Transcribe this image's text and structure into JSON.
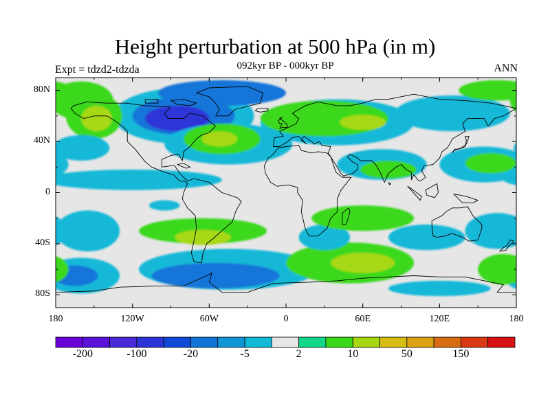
{
  "title": "Height perturbation at 500 hPa (in m)",
  "subtitle": "092kyr BP - 000kyr BP",
  "experiment_label": "Expt = tdzd2-tdzda",
  "season_label": "ANN",
  "colors": {
    "background": "#e6e6e6",
    "coast": "#000000"
  },
  "map": {
    "projection": "cylindrical-equidistant",
    "lon_range": [
      -180,
      180
    ],
    "lat_range": [
      -90,
      90
    ],
    "lat_ticks": [
      {
        "value": 80,
        "label": "80N"
      },
      {
        "value": 40,
        "label": "40N"
      },
      {
        "value": 0,
        "label": "0"
      },
      {
        "value": -40,
        "label": "40S"
      },
      {
        "value": -80,
        "label": "80S"
      }
    ],
    "lon_ticks": [
      {
        "value": -180,
        "label": "180"
      },
      {
        "value": -120,
        "label": "120W"
      },
      {
        "value": -60,
        "label": "60W"
      },
      {
        "value": 0,
        "label": "0"
      },
      {
        "value": 60,
        "label": "60E"
      },
      {
        "value": 120,
        "label": "120E"
      },
      {
        "value": 180,
        "label": "180"
      }
    ]
  },
  "colorbar": {
    "colors": [
      "#6a00d8",
      "#5a12d8",
      "#4b2ad8",
      "#2e35d8",
      "#124ad8",
      "#1274d8",
      "#1296d6",
      "#12b8d8",
      "#e6e6e6",
      "#12d88a",
      "#3ad81a",
      "#a6d812",
      "#d8be12",
      "#d8a212",
      "#d86c12",
      "#d83a12",
      "#d81212"
    ],
    "labels": [
      {
        "boundary": 1,
        "text": "-200"
      },
      {
        "boundary": 3,
        "text": "-100"
      },
      {
        "boundary": 5,
        "text": "-20"
      },
      {
        "boundary": 7,
        "text": "-5"
      },
      {
        "boundary": 9,
        "text": "2"
      },
      {
        "boundary": 11,
        "text": "10"
      },
      {
        "boundary": 13,
        "text": "50"
      },
      {
        "boundary": 15,
        "text": "150"
      }
    ]
  },
  "field_blobs": [
    {
      "lon": -80,
      "lat": 60,
      "rlon": 55,
      "rlat": 22,
      "cls": -5
    },
    {
      "lon": -80,
      "lat": 60,
      "rlon": 40,
      "rlat": 15,
      "cls": -20
    },
    {
      "lon": -85,
      "lat": 58,
      "rlon": 25,
      "rlat": 10,
      "cls": -100
    },
    {
      "lon": -50,
      "lat": 78,
      "rlon": 50,
      "rlat": 10,
      "cls": -20
    },
    {
      "lon": -160,
      "lat": 72,
      "rlon": 25,
      "rlat": 15,
      "cls": 10
    },
    {
      "lon": -150,
      "lat": 60,
      "rlon": 22,
      "rlat": 18,
      "cls": 10
    },
    {
      "lon": -148,
      "lat": 58,
      "rlon": 12,
      "rlat": 10,
      "cls": 50
    },
    {
      "lon": -160,
      "lat": 35,
      "rlon": 22,
      "rlat": 10,
      "cls": -5
    },
    {
      "lon": -45,
      "lat": 38,
      "rlon": 50,
      "rlat": 16,
      "cls": -5
    },
    {
      "lon": -50,
      "lat": 42,
      "rlon": 30,
      "rlat": 12,
      "cls": 10
    },
    {
      "lon": -52,
      "lat": 42,
      "rlon": 14,
      "rlat": 6,
      "cls": 50
    },
    {
      "lon": 40,
      "lat": 55,
      "rlon": 60,
      "rlat": 18,
      "cls": -5
    },
    {
      "lon": 30,
      "lat": 58,
      "rlon": 50,
      "rlat": 14,
      "cls": 10
    },
    {
      "lon": 60,
      "lat": 55,
      "rlon": 18,
      "rlat": 6,
      "cls": 50
    },
    {
      "lon": 130,
      "lat": 62,
      "rlon": 45,
      "rlat": 14,
      "cls": -5
    },
    {
      "lon": 165,
      "lat": 80,
      "rlon": 30,
      "rlat": 8,
      "cls": 10
    },
    {
      "lon": 155,
      "lat": 22,
      "rlon": 35,
      "rlat": 14,
      "cls": -5
    },
    {
      "lon": 160,
      "lat": 23,
      "rlon": 20,
      "rlat": 8,
      "cls": 10
    },
    {
      "lon": 75,
      "lat": 22,
      "rlon": 35,
      "rlat": 12,
      "cls": -5
    },
    {
      "lon": 80,
      "lat": 18,
      "rlon": 22,
      "rlat": 7,
      "cls": 10
    },
    {
      "lon": -120,
      "lat": 10,
      "rlon": 70,
      "rlat": 8,
      "cls": -5
    },
    {
      "lon": -95,
      "lat": -10,
      "rlon": 12,
      "rlat": 4,
      "cls": -5
    },
    {
      "lon": -155,
      "lat": -30,
      "rlon": 25,
      "rlat": 16,
      "cls": -5
    },
    {
      "lon": -160,
      "lat": -65,
      "rlon": 30,
      "rlat": 14,
      "cls": -5
    },
    {
      "lon": -165,
      "lat": -65,
      "rlon": 18,
      "rlat": 8,
      "cls": -20
    },
    {
      "lon": -65,
      "lat": -30,
      "rlon": 50,
      "rlat": 10,
      "cls": 10
    },
    {
      "lon": -65,
      "lat": -35,
      "rlon": 22,
      "rlat": 6,
      "cls": 50
    },
    {
      "lon": -45,
      "lat": -60,
      "rlon": 70,
      "rlat": 16,
      "cls": -5
    },
    {
      "lon": -55,
      "lat": -65,
      "rlon": 50,
      "rlat": 10,
      "cls": -20
    },
    {
      "lon": 50,
      "lat": -55,
      "rlon": 50,
      "rlat": 16,
      "cls": 10
    },
    {
      "lon": 60,
      "lat": -55,
      "rlon": 25,
      "rlat": 8,
      "cls": 50
    },
    {
      "lon": 30,
      "lat": -35,
      "rlon": 20,
      "rlat": 10,
      "cls": -5
    },
    {
      "lon": 60,
      "lat": -20,
      "rlon": 40,
      "rlat": 10,
      "cls": 10
    },
    {
      "lon": 110,
      "lat": -35,
      "rlon": 30,
      "rlat": 10,
      "cls": -5
    },
    {
      "lon": 165,
      "lat": -30,
      "rlon": 25,
      "rlat": 14,
      "cls": -5
    },
    {
      "lon": 170,
      "lat": -60,
      "rlon": 20,
      "rlat": 12,
      "cls": 10
    },
    {
      "lon": 120,
      "lat": -75,
      "rlon": 40,
      "rlat": 6,
      "cls": -5
    }
  ],
  "coastlines": [
    [
      [
        -168,
        66
      ],
      [
        -165,
        62
      ],
      [
        -158,
        58
      ],
      [
        -150,
        60
      ],
      [
        -140,
        60
      ],
      [
        -135,
        57
      ],
      [
        -128,
        52
      ],
      [
        -124,
        48
      ],
      [
        -124,
        40
      ],
      [
        -118,
        34
      ],
      [
        -110,
        24
      ],
      [
        -105,
        20
      ],
      [
        -95,
        16
      ],
      [
        -88,
        14
      ],
      [
        -83,
        9
      ],
      [
        -79,
        9
      ],
      [
        -77,
        7
      ],
      [
        -80,
        0
      ],
      [
        -81,
        -5
      ],
      [
        -77,
        -12
      ],
      [
        -71,
        -18
      ],
      [
        -70,
        -28
      ],
      [
        -72,
        -38
      ],
      [
        -74,
        -47
      ],
      [
        -72,
        -54
      ],
      [
        -66,
        -55
      ],
      [
        -65,
        -48
      ],
      [
        -62,
        -40
      ],
      [
        -57,
        -36
      ],
      [
        -48,
        -28
      ],
      [
        -42,
        -23
      ],
      [
        -39,
        -14
      ],
      [
        -35,
        -7
      ],
      [
        -38,
        -4
      ],
      [
        -50,
        0
      ],
      [
        -60,
        8
      ],
      [
        -72,
        11
      ],
      [
        -77,
        9
      ],
      [
        -83,
        15
      ],
      [
        -87,
        21
      ],
      [
        -90,
        21
      ],
      [
        -97,
        20
      ],
      [
        -97,
        26
      ],
      [
        -90,
        29
      ],
      [
        -84,
        30
      ],
      [
        -81,
        25
      ],
      [
        -80,
        32
      ],
      [
        -75,
        36
      ],
      [
        -70,
        42
      ],
      [
        -66,
        45
      ],
      [
        -60,
        47
      ],
      [
        -55,
        52
      ],
      [
        -60,
        56
      ],
      [
        -65,
        60
      ],
      [
        -75,
        62
      ],
      [
        -80,
        58
      ],
      [
        -92,
        58
      ],
      [
        -95,
        62
      ],
      [
        -90,
        67
      ],
      [
        -110,
        68
      ],
      [
        -125,
        70
      ],
      [
        -140,
        70
      ],
      [
        -156,
        71
      ],
      [
        -166,
        68
      ],
      [
        -168,
        66
      ]
    ],
    [
      [
        -55,
        60
      ],
      [
        -45,
        60
      ],
      [
        -40,
        65
      ],
      [
        -20,
        70
      ],
      [
        -18,
        78
      ],
      [
        -30,
        83
      ],
      [
        -60,
        82
      ],
      [
        -70,
        78
      ],
      [
        -60,
        75
      ],
      [
        -55,
        70
      ],
      [
        -52,
        65
      ],
      [
        -55,
        60
      ]
    ],
    [
      [
        -10,
        36
      ],
      [
        -9,
        43
      ],
      [
        -2,
        44
      ],
      [
        -5,
        48
      ],
      [
        2,
        51
      ],
      [
        8,
        54
      ],
      [
        10,
        58
      ],
      [
        5,
        62
      ],
      [
        15,
        68
      ],
      [
        25,
        71
      ],
      [
        40,
        68
      ],
      [
        50,
        68
      ],
      [
        60,
        70
      ],
      [
        70,
        73
      ],
      [
        80,
        73
      ],
      [
        100,
        77
      ],
      [
        120,
        73
      ],
      [
        140,
        72
      ],
      [
        160,
        70
      ],
      [
        175,
        67
      ],
      [
        180,
        66
      ],
      [
        170,
        60
      ],
      [
        163,
        58
      ],
      [
        158,
        52
      ],
      [
        155,
        58
      ],
      [
        142,
        58
      ],
      [
        138,
        54
      ],
      [
        140,
        48
      ],
      [
        130,
        42
      ],
      [
        128,
        38
      ],
      [
        126,
        35
      ],
      [
        122,
        32
      ],
      [
        120,
        27
      ],
      [
        115,
        22
      ],
      [
        108,
        21
      ],
      [
        106,
        17
      ],
      [
        109,
        12
      ],
      [
        105,
        9
      ],
      [
        103,
        10
      ],
      [
        100,
        14
      ],
      [
        98,
        10
      ],
      [
        98,
        16
      ],
      [
        94,
        18
      ],
      [
        90,
        22
      ],
      [
        86,
        20
      ],
      [
        80,
        15
      ],
      [
        77,
        8
      ],
      [
        73,
        17
      ],
      [
        70,
        22
      ],
      [
        67,
        25
      ],
      [
        58,
        25
      ],
      [
        56,
        27
      ],
      [
        50,
        30
      ],
      [
        48,
        28
      ],
      [
        52,
        24
      ],
      [
        56,
        22
      ],
      [
        56,
        18
      ],
      [
        52,
        15
      ],
      [
        45,
        13
      ],
      [
        43,
        15
      ],
      [
        40,
        20
      ],
      [
        35,
        28
      ],
      [
        33,
        31
      ],
      [
        35,
        36
      ],
      [
        28,
        37
      ],
      [
        26,
        40
      ],
      [
        22,
        38
      ],
      [
        20,
        40
      ],
      [
        14,
        44
      ],
      [
        12,
        41
      ],
      [
        16,
        38
      ],
      [
        10,
        44
      ],
      [
        5,
        43
      ],
      [
        0,
        39
      ],
      [
        -5,
        36
      ],
      [
        -10,
        36
      ]
    ],
    [
      [
        -17,
        21
      ],
      [
        -16,
        15
      ],
      [
        -12,
        8
      ],
      [
        -7,
        5
      ],
      [
        2,
        6
      ],
      [
        9,
        4
      ],
      [
        9,
        0
      ],
      [
        13,
        -6
      ],
      [
        12,
        -15
      ],
      [
        15,
        -28
      ],
      [
        18,
        -34
      ],
      [
        25,
        -34
      ],
      [
        32,
        -28
      ],
      [
        35,
        -20
      ],
      [
        40,
        -15
      ],
      [
        40,
        -5
      ],
      [
        43,
        2
      ],
      [
        51,
        12
      ],
      [
        44,
        12
      ],
      [
        39,
        16
      ],
      [
        35,
        28
      ],
      [
        32,
        31
      ],
      [
        25,
        32
      ],
      [
        20,
        31
      ],
      [
        12,
        33
      ],
      [
        10,
        37
      ],
      [
        0,
        36
      ],
      [
        -6,
        35
      ],
      [
        -10,
        30
      ],
      [
        -14,
        27
      ],
      [
        -17,
        21
      ]
    ],
    [
      [
        44,
        -25
      ],
      [
        47,
        -25
      ],
      [
        50,
        -15
      ],
      [
        49,
        -12
      ],
      [
        44,
        -16
      ],
      [
        44,
        -25
      ]
    ],
    [
      [
        114,
        -22
      ],
      [
        114,
        -26
      ],
      [
        115,
        -34
      ],
      [
        118,
        -35
      ],
      [
        124,
        -34
      ],
      [
        130,
        -32
      ],
      [
        138,
        -35
      ],
      [
        143,
        -38
      ],
      [
        150,
        -37
      ],
      [
        153,
        -28
      ],
      [
        153,
        -25
      ],
      [
        146,
        -18
      ],
      [
        142,
        -11
      ],
      [
        136,
        -12
      ],
      [
        130,
        -12
      ],
      [
        125,
        -15
      ],
      [
        122,
        -18
      ],
      [
        114,
        -22
      ]
    ],
    [
      [
        -5,
        50
      ],
      [
        -3,
        51
      ],
      [
        1,
        51
      ],
      [
        1,
        53
      ],
      [
        -2,
        56
      ],
      [
        -5,
        58
      ],
      [
        -3,
        59
      ],
      [
        -6,
        56
      ],
      [
        -5,
        54
      ],
      [
        -3,
        54
      ],
      [
        -5,
        50
      ]
    ],
    [
      [
        130,
        31
      ],
      [
        132,
        34
      ],
      [
        135,
        34
      ],
      [
        140,
        36
      ],
      [
        141,
        41
      ],
      [
        140,
        44
      ],
      [
        143,
        44
      ],
      [
        141,
        38
      ],
      [
        137,
        35
      ],
      [
        131,
        33
      ],
      [
        130,
        31
      ]
    ],
    [
      [
        95,
        5
      ],
      [
        105,
        -6
      ],
      [
        106,
        -3
      ],
      [
        98,
        3
      ],
      [
        95,
        5
      ]
    ],
    [
      [
        109,
        2
      ],
      [
        118,
        7
      ],
      [
        119,
        0
      ],
      [
        116,
        -4
      ],
      [
        110,
        -2
      ],
      [
        109,
        2
      ]
    ],
    [
      [
        131,
        -1
      ],
      [
        141,
        -3
      ],
      [
        150,
        -6
      ],
      [
        146,
        -8
      ],
      [
        138,
        -8
      ],
      [
        131,
        -1
      ]
    ],
    [
      [
        173,
        -41
      ],
      [
        175,
        -37
      ],
      [
        178,
        -38
      ],
      [
        174,
        -42
      ],
      [
        172,
        -45
      ],
      [
        167,
        -46
      ],
      [
        170,
        -43
      ],
      [
        173,
        -41
      ]
    ],
    [
      [
        -24,
        64
      ],
      [
        -22,
        66
      ],
      [
        -14,
        66
      ],
      [
        -14,
        64
      ],
      [
        -20,
        63
      ],
      [
        -24,
        64
      ]
    ],
    [
      [
        -85,
        22
      ],
      [
        -80,
        23
      ],
      [
        -75,
        20
      ],
      [
        -78,
        19
      ],
      [
        -85,
        22
      ]
    ],
    [
      [
        -180,
        -78
      ],
      [
        -150,
        -77
      ],
      [
        -130,
        -74
      ],
      [
        -100,
        -73
      ],
      [
        -80,
        -73
      ],
      [
        -62,
        -65
      ],
      [
        -58,
        -63
      ],
      [
        -60,
        -70
      ],
      [
        -50,
        -78
      ],
      [
        -30,
        -78
      ],
      [
        -10,
        -71
      ],
      [
        20,
        -70
      ],
      [
        40,
        -69
      ],
      [
        60,
        -67
      ],
      [
        80,
        -66
      ],
      [
        100,
        -65
      ],
      [
        120,
        -66
      ],
      [
        140,
        -66
      ],
      [
        160,
        -70
      ],
      [
        170,
        -72
      ],
      [
        165,
        -78
      ],
      [
        180,
        -78
      ]
    ],
    [
      [
        -90,
        72
      ],
      [
        -80,
        73
      ],
      [
        -70,
        70
      ],
      [
        -75,
        68
      ],
      [
        -85,
        69
      ],
      [
        -90,
        72
      ]
    ],
    [
      [
        -110,
        73
      ],
      [
        -100,
        73
      ],
      [
        -100,
        70
      ],
      [
        -110,
        70
      ],
      [
        -110,
        73
      ]
    ],
    [
      [
        80,
        8
      ],
      [
        82,
        7
      ],
      [
        81,
        6
      ],
      [
        80,
        8
      ]
    ]
  ]
}
